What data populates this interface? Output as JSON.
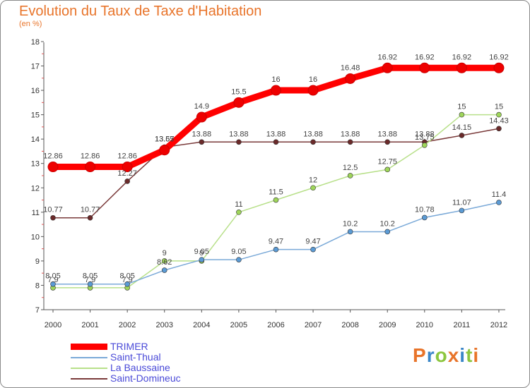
{
  "header": {
    "title": "Evolution du Taux de Taxe d'Habitation",
    "unit": "(en %)"
  },
  "chart_data": {
    "type": "line",
    "title": "Evolution du Taux de Taxe d'Habitation",
    "subtitle": "(en %)",
    "xlabel": "",
    "ylabel": "",
    "x": [
      "2000",
      "2001",
      "2002",
      "2003",
      "2004",
      "2005",
      "2006",
      "2007",
      "2008",
      "2009",
      "2010",
      "2011",
      "2012"
    ],
    "ylim": [
      7,
      18
    ],
    "yticks": [
      "7",
      "8",
      "9",
      "10",
      "11",
      "12",
      "13",
      "14",
      "15",
      "16",
      "17",
      "18"
    ],
    "grid": false,
    "legend_position": "bottom-left",
    "series": [
      {
        "name": "TRIMER",
        "color": "#ff0000",
        "values": [
          12.86,
          12.86,
          12.86,
          13.55,
          14.9,
          15.5,
          16,
          16,
          16.48,
          16.92,
          16.92,
          16.92,
          16.92
        ],
        "labels": [
          "12.86",
          "12.86",
          "12.86",
          "13.55",
          "14.9",
          "15.5",
          "16",
          "16",
          "16.48",
          "16.92",
          "16.92",
          "16.92",
          "16.92"
        ]
      },
      {
        "name": "Saint-Thual",
        "color": "#5b9bd5",
        "values": [
          8.05,
          8.05,
          8.05,
          8.62,
          9.05,
          9.05,
          9.47,
          9.47,
          10.2,
          10.2,
          10.78,
          11.07,
          11.4
        ],
        "labels": [
          "8.05",
          "8.05",
          "8.05",
          "8.62",
          "9.05",
          "9.05",
          "9.47",
          "9.47",
          "10.2",
          "10.2",
          "10.78",
          "11.07",
          "11.4"
        ]
      },
      {
        "name": "La Baussaine",
        "color": "#9fd65a",
        "values": [
          7.9,
          7.9,
          7.9,
          9,
          9,
          11,
          11.5,
          12,
          12.5,
          12.75,
          13.75,
          15,
          15
        ],
        "labels": [
          "7.9",
          "7.9",
          "7.9",
          "9",
          "9",
          "11",
          "11.5",
          "12",
          "12.5",
          "12.75",
          "13.75",
          "15",
          "15"
        ]
      },
      {
        "name": "Saint-Domineuc",
        "color": "#6b2a2a",
        "values": [
          10.77,
          10.77,
          12.27,
          13.67,
          13.88,
          13.88,
          13.88,
          13.88,
          13.88,
          13.88,
          13.88,
          14.15,
          14.43
        ],
        "labels": [
          "10.77",
          "10.77",
          "12.27",
          "13.67",
          "13.88",
          "13.88",
          "13.88",
          "13.88",
          "13.88",
          "13.88",
          "13.88",
          "14.15",
          "14.43"
        ]
      }
    ]
  },
  "logo": {
    "letters": [
      "P",
      "r",
      "o",
      "x",
      "i",
      "t",
      "i"
    ],
    "colors": [
      "#e8742a",
      "#3a86c8",
      "#8cc63f",
      "#e8742a",
      "#3a86c8",
      "#8cc63f",
      "#e8742a"
    ]
  }
}
